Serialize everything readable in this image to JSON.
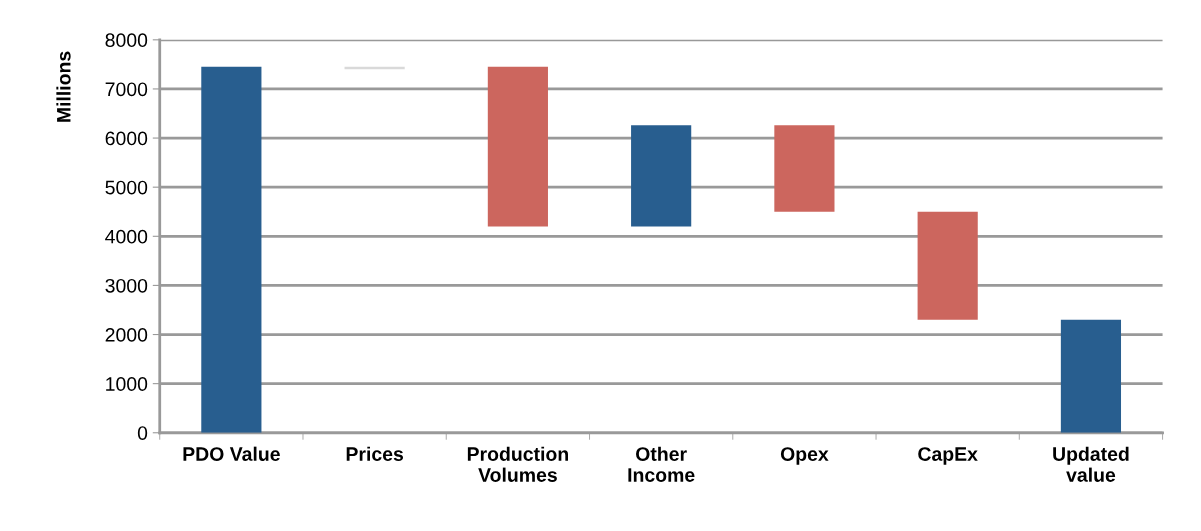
{
  "chart_data": {
    "type": "bar",
    "ylabel": "Millions",
    "categories": [
      "PDO Value",
      "Prices",
      "Production\nVolumes",
      "Other\nIncome",
      "Opex",
      "CapEx",
      "Updated\nvalue"
    ],
    "values": [
      7450,
      50,
      3250,
      2060,
      1760,
      2200,
      2300
    ],
    "base": [
      0,
      7400,
      4200,
      4200,
      4500,
      2300,
      0
    ],
    "colors": [
      "#285e8f",
      "#d9d9d9",
      "#cc665e",
      "#285e8f",
      "#cc665e",
      "#cc665e",
      "#285e8f"
    ],
    "ylim": [
      0,
      8000
    ],
    "yticks": [
      0,
      1000,
      2000,
      3000,
      4000,
      5000,
      6000,
      7000,
      8000
    ],
    "grid": "y"
  }
}
